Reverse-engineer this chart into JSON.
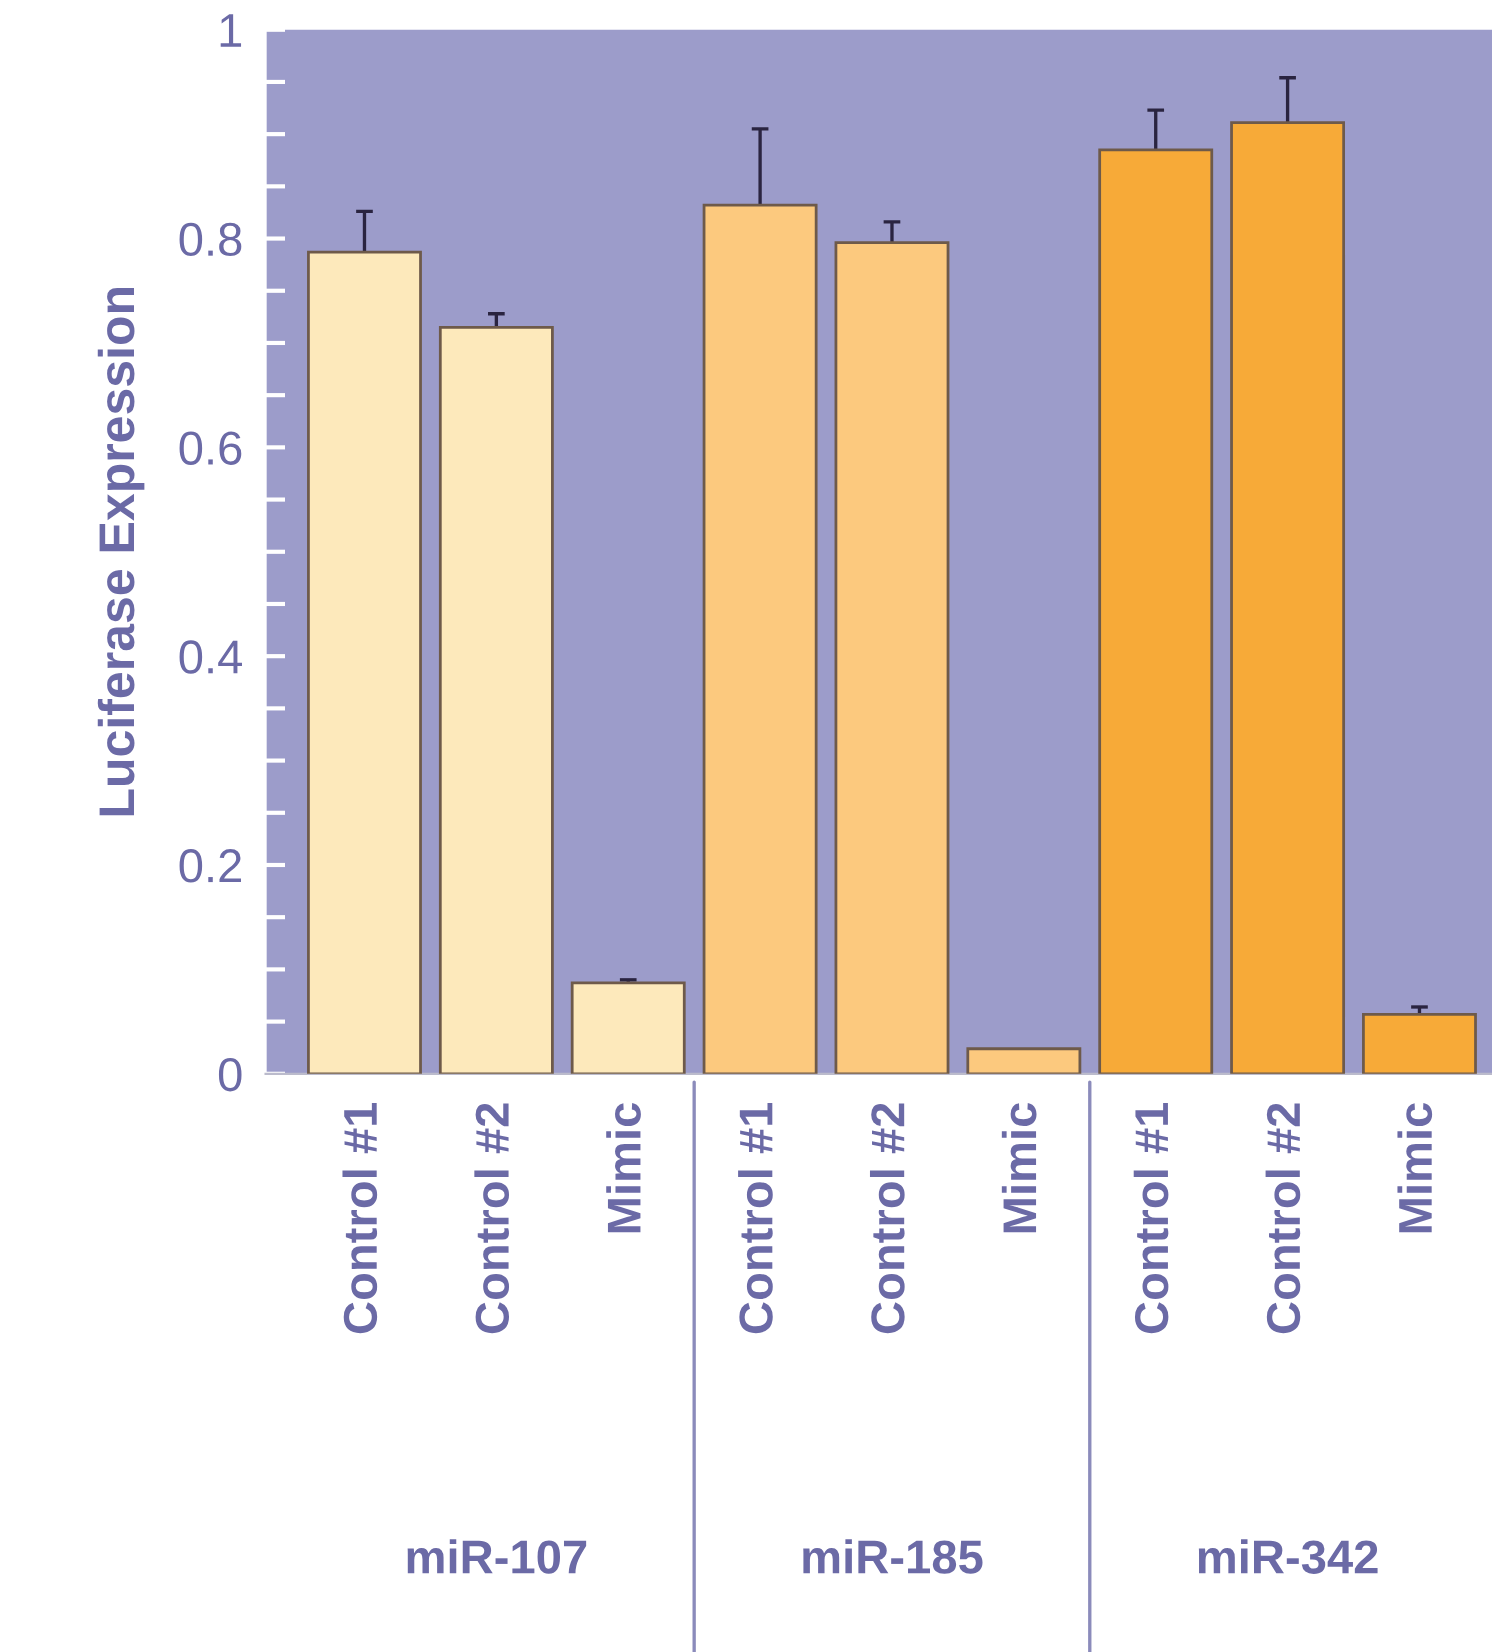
{
  "chart_data": {
    "type": "bar",
    "ylabel": "Luciferase Expression",
    "categories": [
      "Control #1",
      "Control #2",
      "Mimic",
      "Control #1",
      "Control #2",
      "Mimic",
      "Control #1",
      "Control #2",
      "Mimic"
    ],
    "values": [
      0.787,
      0.715,
      0.087,
      0.832,
      0.796,
      0.024,
      0.885,
      0.911,
      0.057
    ],
    "errors": [
      0.039,
      0.013,
      0.003,
      0.073,
      0.02,
      null,
      0.038,
      0.043,
      0.007
    ],
    "colors": [
      "#fde9bb",
      "#fde9bb",
      "#fde9bb",
      "#fcc97e",
      "#fcc97e",
      "#fcc97e",
      "#f7aa38",
      "#f7aa38",
      "#f7aa38"
    ],
    "annotations": [
      "miR-107",
      "miR-185",
      "miR-342"
    ],
    "ylim": [
      0,
      1
    ],
    "yticks": [
      0,
      {
        "value": 0.05,
        "label": null
      },
      {
        "value": 0.1,
        "label": null
      },
      {
        "value": 0.15,
        "label": null
      },
      0.2,
      {
        "value": 0.25,
        "label": null
      },
      {
        "value": 0.3,
        "label": null
      },
      {
        "value": 0.35,
        "label": null
      },
      0.4,
      {
        "value": 0.45,
        "label": null
      },
      {
        "value": 0.5,
        "label": null
      },
      {
        "value": 0.55,
        "label": null
      },
      0.6,
      {
        "value": 0.65,
        "label": null
      },
      {
        "value": 0.7,
        "label": null
      },
      {
        "value": 0.75,
        "label": null
      },
      0.8,
      {
        "value": 0.85,
        "label": null
      },
      {
        "value": 0.9,
        "label": null
      },
      {
        "value": 0.95,
        "label": null
      },
      1
    ],
    "grid": false
  }
}
